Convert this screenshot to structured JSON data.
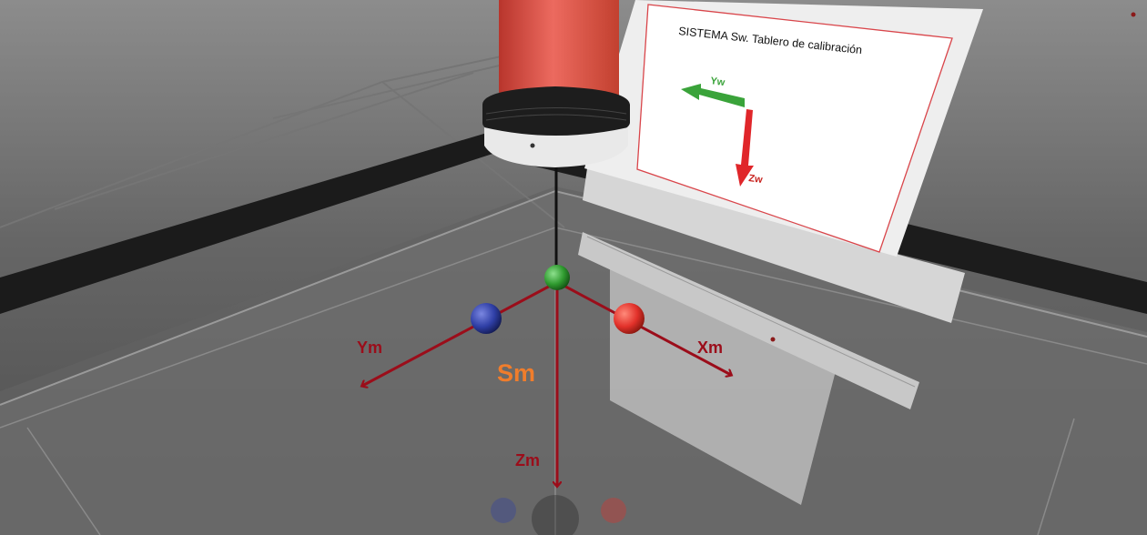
{
  "board": {
    "title": "SISTEMA Sw. Tablero de calibración",
    "y_label": "Yw",
    "z_label": "Zw"
  },
  "frame": {
    "name": "Sm",
    "x_label": "Xm",
    "y_label": "Ym",
    "z_label": "Zm"
  },
  "colors": {
    "axis": "#9b0d1a",
    "frame_name": "#f07d2c",
    "board_y_arrow": "#3aa33a",
    "board_z_arrow": "#e0262a",
    "sphere_x": "#e2312a",
    "sphere_y": "#2f3fa6",
    "sphere_origin": "#2f9a2f",
    "tool_body": "#e0574d"
  }
}
